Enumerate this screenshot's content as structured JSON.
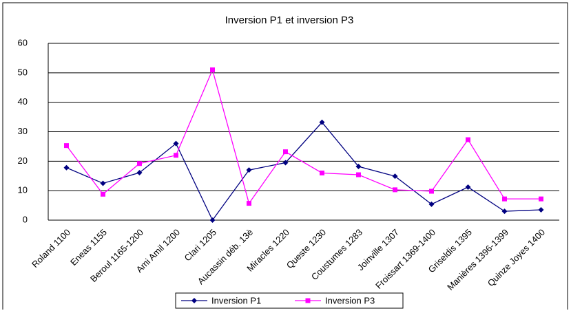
{
  "chart_data": {
    "type": "line",
    "title": "Inversion P1 et inversion P3",
    "categories": [
      "Roland 1100",
      "Eneas 1155",
      "Beroul 1165-1200",
      "Ami Amil 1200",
      "Clari 1205",
      "Aucassin déb. 13è",
      "Miracles 1220",
      "Queste 1230",
      "Coustumes 1283",
      "Joinville 1307",
      "Froissart 1369-1400",
      "Griseldis 1395",
      "Manières 1396-1399",
      "Quinze Joyes 1400"
    ],
    "series": [
      {
        "name": "Inversion P1",
        "color": "#000080",
        "marker": "diamond",
        "values": [
          17.8,
          12.5,
          16.1,
          26,
          0,
          17,
          19.5,
          33.2,
          18.2,
          14.9,
          5.4,
          11.2,
          3,
          3.5
        ]
      },
      {
        "name": "Inversion P3",
        "color": "#ff00ff",
        "marker": "square",
        "values": [
          25.3,
          8.8,
          19.2,
          22,
          51,
          5.7,
          23.2,
          16,
          15.4,
          10.3,
          9.8,
          27.3,
          7.2,
          7.2
        ]
      }
    ],
    "ylim": [
      0,
      60
    ],
    "yticks": [
      0,
      10,
      20,
      30,
      40,
      50,
      60
    ],
    "grid": true,
    "legend": "bottom"
  }
}
